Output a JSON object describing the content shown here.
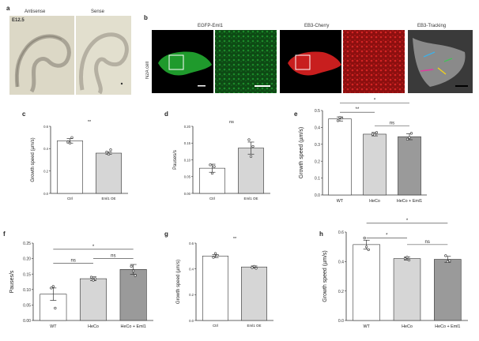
{
  "panel_letters": [
    "a",
    "b",
    "c",
    "d",
    "e",
    "f",
    "g",
    "h"
  ],
  "panel_a": {
    "left_label": "Antisense",
    "right_label": "Sense",
    "stage": "E12.5"
  },
  "panel_b": {
    "cell_label": "N2A cell",
    "label_1": "EGFP-Eml1",
    "label_2": "EB3-Cherry",
    "label_3": "EB3-Tracking"
  },
  "colors": {
    "white_bar": "#ffffff",
    "light_bar": "#d6d6d6",
    "dark_bar": "#9a9a9a",
    "axis": "#333333"
  },
  "chart_data": [
    {
      "id": "c",
      "type": "bar",
      "ylabel": "Growth speed (µm/s)",
      "categories": [
        "Ctrl",
        "Eml1 OE"
      ],
      "values": [
        0.47,
        0.36
      ],
      "errors": [
        0.02,
        0.01
      ],
      "ylim": [
        0,
        0.6
      ],
      "ticks": [
        "0.0",
        "0.2",
        "0.4",
        "0.6"
      ],
      "points": [
        [
          0.46,
          0.45,
          0.5
        ],
        [
          0.37,
          0.35,
          0.39
        ]
      ],
      "bar_colors": [
        "#ffffff",
        "#d6d6d6"
      ],
      "sig": [
        {
          "from": 0,
          "to": 1,
          "label": "**",
          "line": false
        }
      ]
    },
    {
      "id": "d",
      "type": "bar",
      "ylabel": "Pauses/s",
      "categories": [
        "Ctrl",
        "Eml1 OE"
      ],
      "values": [
        0.075,
        0.135
      ],
      "errors": [
        0.012,
        0.018
      ],
      "ylim": [
        0,
        0.2
      ],
      "ticks": [
        "0.00",
        "0.05",
        "0.10",
        "0.15",
        "0.20"
      ],
      "points": [
        [
          0.085,
          0.06,
          0.08
        ],
        [
          0.16,
          0.11,
          0.14
        ]
      ],
      "bar_colors": [
        "#ffffff",
        "#d6d6d6"
      ],
      "sig": [
        {
          "from": 0,
          "to": 1,
          "label": "ns",
          "line": false
        }
      ]
    },
    {
      "id": "e",
      "type": "bar",
      "ylabel": "Growth speed (µm/s)",
      "categories": [
        "WT",
        "HeCo",
        "HeCo + Eml1"
      ],
      "values": [
        0.45,
        0.36,
        0.345
      ],
      "errors": [
        0.012,
        0.01,
        0.018
      ],
      "ylim": [
        0,
        0.5
      ],
      "ticks": [
        "0.0",
        "0.1",
        "0.2",
        "0.3",
        "0.4",
        "0.5"
      ],
      "points": [
        [
          0.44,
          0.46,
          0.455
        ],
        [
          0.36,
          0.355,
          0.37
        ],
        [
          0.33,
          0.34,
          0.365
        ]
      ],
      "bar_colors": [
        "#ffffff",
        "#d6d6d6",
        "#9a9a9a"
      ],
      "sig": [
        {
          "from": 0,
          "to": 2,
          "label": "*",
          "line": true,
          "level": 0.545
        },
        {
          "from": 0,
          "to": 1,
          "label": "**",
          "line": true,
          "level": 0.49
        },
        {
          "from": 1,
          "to": 2,
          "label": "ns",
          "line": true,
          "level": 0.41
        }
      ]
    },
    {
      "id": "f",
      "type": "bar",
      "ylabel": "Pauses/s",
      "categories": [
        "WT",
        "HeCo",
        "HeCo + Eml1"
      ],
      "values": [
        0.085,
        0.135,
        0.165
      ],
      "errors": [
        0.02,
        0.006,
        0.016
      ],
      "ylim": [
        0,
        0.25
      ],
      "ticks": [
        "0.00",
        "0.05",
        "0.10",
        "0.15",
        "0.20",
        "0.25"
      ],
      "points": [
        [
          0.105,
          0.11,
          0.04
        ],
        [
          0.14,
          0.13,
          0.135
        ],
        [
          0.175,
          0.16,
          0.145
        ]
      ],
      "bar_colors": [
        "#ffffff",
        "#d6d6d6",
        "#9a9a9a"
      ],
      "sig": [
        {
          "from": 0,
          "to": 2,
          "label": "*",
          "line": true,
          "level": 0.23
        },
        {
          "from": 0,
          "to": 1,
          "label": "ns",
          "line": true,
          "level": 0.185
        },
        {
          "from": 1,
          "to": 2,
          "label": "ns",
          "line": true,
          "level": 0.2
        }
      ]
    },
    {
      "id": "g",
      "type": "bar",
      "ylabel": "Growth speed (µm/s)",
      "categories": [
        "Ctrl",
        "Eml1 OE"
      ],
      "values": [
        0.5,
        0.415
      ],
      "errors": [
        0.012,
        0.008
      ],
      "ylim": [
        0,
        0.6
      ],
      "ticks": [
        "0.0",
        "0.2",
        "0.4",
        "0.6"
      ],
      "points": [
        [
          0.49,
          0.52,
          0.505
        ],
        [
          0.41,
          0.42,
          0.405
        ]
      ],
      "bar_colors": [
        "#ffffff",
        "#d6d6d6"
      ],
      "sig": [
        {
          "from": 0,
          "to": 1,
          "label": "**",
          "line": false
        }
      ]
    },
    {
      "id": "h",
      "type": "bar",
      "ylabel": "Growth speed (µm/s)",
      "categories": [
        "WT",
        "HeCo",
        "HeCo + Eml1"
      ],
      "values": [
        0.515,
        0.42,
        0.415
      ],
      "errors": [
        0.03,
        0.01,
        0.02
      ],
      "ylim": [
        0,
        0.6
      ],
      "ticks": [
        "0.0",
        "0.2",
        "0.4",
        "0.6"
      ],
      "points": [
        [
          0.56,
          0.5,
          0.48
        ],
        [
          0.42,
          0.43,
          0.41
        ],
        [
          0.44,
          0.4,
          0.405
        ]
      ],
      "bar_colors": [
        "#ffffff",
        "#d6d6d6",
        "#9a9a9a"
      ],
      "sig": [
        {
          "from": 0,
          "to": 2,
          "label": "*",
          "line": true,
          "level": 0.66
        },
        {
          "from": 0,
          "to": 1,
          "label": "*",
          "line": true,
          "level": 0.56
        },
        {
          "from": 1,
          "to": 2,
          "label": "ns",
          "line": true,
          "level": 0.515
        }
      ]
    }
  ]
}
